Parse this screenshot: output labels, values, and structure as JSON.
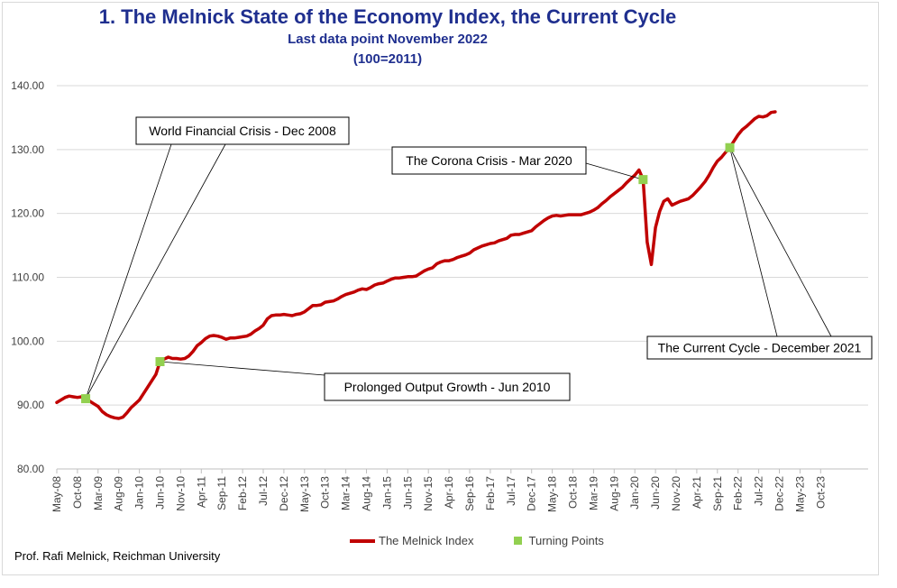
{
  "chart_data": {
    "type": "line",
    "title": "1.  The Melnick State of the Economy Index, the Current Cycle",
    "subtitle_1": "Last data point November 2022",
    "subtitle_2": "(100=2011)",
    "ylim": [
      80,
      140
    ],
    "y_ticks": [
      "80.00",
      "90.00",
      "100.00",
      "110.00",
      "120.00",
      "130.00",
      "140.00"
    ],
    "x_ticks": [
      "May-08",
      "Oct-08",
      "Mar-09",
      "Aug-09",
      "Jan-10",
      "Jun-10",
      "Nov-10",
      "Apr-11",
      "Sep-11",
      "Feb-12",
      "Jul-12",
      "Dec-12",
      "May-13",
      "Oct-13",
      "Mar-14",
      "Aug-14",
      "Jan-15",
      "Jun-15",
      "Nov-15",
      "Apr-16",
      "Sep-16",
      "Feb-17",
      "Jul-17",
      "Dec-17",
      "May-18",
      "Oct-18",
      "Mar-19",
      "Aug-19",
      "Jan-20",
      "Jun-20",
      "Nov-20",
      "Apr-21",
      "Sep-21",
      "Feb-22",
      "Jul-22",
      "Dec-22",
      "May-23",
      "Oct-23"
    ],
    "x_start": "2008-05",
    "grid": true,
    "series": [
      {
        "name": "The Melnick Index",
        "color": "#c00000",
        "points": [
          [
            "2008-05",
            90.4
          ],
          [
            "2008-06",
            90.8
          ],
          [
            "2008-07",
            91.2
          ],
          [
            "2008-08",
            91.4
          ],
          [
            "2008-09",
            91.3
          ],
          [
            "2008-10",
            91.2
          ],
          [
            "2008-11",
            91.3
          ],
          [
            "2008-12",
            91.0
          ],
          [
            "2009-01",
            90.6
          ],
          [
            "2009-02",
            90.2
          ],
          [
            "2009-03",
            89.8
          ],
          [
            "2009-04",
            89.0
          ],
          [
            "2009-05",
            88.5
          ],
          [
            "2009-06",
            88.2
          ],
          [
            "2009-07",
            88.0
          ],
          [
            "2009-08",
            87.9
          ],
          [
            "2009-09",
            88.1
          ],
          [
            "2009-10",
            88.8
          ],
          [
            "2009-11",
            89.6
          ],
          [
            "2009-12",
            90.2
          ],
          [
            "2010-01",
            90.8
          ],
          [
            "2010-02",
            91.8
          ],
          [
            "2010-03",
            92.8
          ],
          [
            "2010-04",
            93.8
          ],
          [
            "2010-05",
            94.8
          ],
          [
            "2010-06",
            96.8
          ],
          [
            "2010-07",
            97.2
          ],
          [
            "2010-08",
            97.5
          ],
          [
            "2010-09",
            97.3
          ],
          [
            "2010-10",
            97.3
          ],
          [
            "2010-11",
            97.2
          ],
          [
            "2010-12",
            97.3
          ],
          [
            "2011-01",
            97.7
          ],
          [
            "2011-02",
            98.4
          ],
          [
            "2011-03",
            99.3
          ],
          [
            "2011-04",
            99.8
          ],
          [
            "2011-05",
            100.4
          ],
          [
            "2011-06",
            100.8
          ],
          [
            "2011-07",
            100.9
          ],
          [
            "2011-08",
            100.8
          ],
          [
            "2011-09",
            100.6
          ],
          [
            "2011-10",
            100.3
          ],
          [
            "2011-11",
            100.5
          ],
          [
            "2011-12",
            100.5
          ],
          [
            "2012-01",
            100.6
          ],
          [
            "2012-02",
            100.7
          ],
          [
            "2012-03",
            100.8
          ],
          [
            "2012-04",
            101.1
          ],
          [
            "2012-05",
            101.6
          ],
          [
            "2012-06",
            102.0
          ],
          [
            "2012-07",
            102.5
          ],
          [
            "2012-08",
            103.5
          ],
          [
            "2012-09",
            104.0
          ],
          [
            "2012-10",
            104.1
          ],
          [
            "2012-11",
            104.1
          ],
          [
            "2012-12",
            104.2
          ],
          [
            "2013-01",
            104.1
          ],
          [
            "2013-02",
            104.0
          ],
          [
            "2013-03",
            104.2
          ],
          [
            "2013-04",
            104.3
          ],
          [
            "2013-05",
            104.6
          ],
          [
            "2013-06",
            105.1
          ],
          [
            "2013-07",
            105.6
          ],
          [
            "2013-08",
            105.6
          ],
          [
            "2013-09",
            105.7
          ],
          [
            "2013-10",
            106.1
          ],
          [
            "2013-11",
            106.2
          ],
          [
            "2013-12",
            106.3
          ],
          [
            "2014-01",
            106.6
          ],
          [
            "2014-02",
            107.0
          ],
          [
            "2014-03",
            107.3
          ],
          [
            "2014-04",
            107.5
          ],
          [
            "2014-05",
            107.7
          ],
          [
            "2014-06",
            108.0
          ],
          [
            "2014-07",
            108.2
          ],
          [
            "2014-08",
            108.1
          ],
          [
            "2014-09",
            108.4
          ],
          [
            "2014-10",
            108.8
          ],
          [
            "2014-11",
            109.0
          ],
          [
            "2014-12",
            109.1
          ],
          [
            "2015-01",
            109.4
          ],
          [
            "2015-02",
            109.7
          ],
          [
            "2015-03",
            109.9
          ],
          [
            "2015-04",
            109.9
          ],
          [
            "2015-05",
            110.0
          ],
          [
            "2015-06",
            110.1
          ],
          [
            "2015-07",
            110.1
          ],
          [
            "2015-08",
            110.2
          ],
          [
            "2015-09",
            110.6
          ],
          [
            "2015-10",
            111.0
          ],
          [
            "2015-11",
            111.3
          ],
          [
            "2015-12",
            111.5
          ],
          [
            "2016-01",
            112.1
          ],
          [
            "2016-02",
            112.4
          ],
          [
            "2016-03",
            112.6
          ],
          [
            "2016-04",
            112.6
          ],
          [
            "2016-05",
            112.8
          ],
          [
            "2016-06",
            113.1
          ],
          [
            "2016-07",
            113.3
          ],
          [
            "2016-08",
            113.5
          ],
          [
            "2016-09",
            113.8
          ],
          [
            "2016-10",
            114.3
          ],
          [
            "2016-11",
            114.6
          ],
          [
            "2016-12",
            114.9
          ],
          [
            "2017-01",
            115.1
          ],
          [
            "2017-02",
            115.3
          ],
          [
            "2017-03",
            115.4
          ],
          [
            "2017-04",
            115.7
          ],
          [
            "2017-05",
            115.9
          ],
          [
            "2017-06",
            116.1
          ],
          [
            "2017-07",
            116.6
          ],
          [
            "2017-08",
            116.7
          ],
          [
            "2017-09",
            116.7
          ],
          [
            "2017-10",
            116.9
          ],
          [
            "2017-11",
            117.1
          ],
          [
            "2017-12",
            117.3
          ],
          [
            "2018-01",
            117.9
          ],
          [
            "2018-02",
            118.4
          ],
          [
            "2018-03",
            118.9
          ],
          [
            "2018-04",
            119.3
          ],
          [
            "2018-05",
            119.6
          ],
          [
            "2018-06",
            119.7
          ],
          [
            "2018-07",
            119.6
          ],
          [
            "2018-08",
            119.7
          ],
          [
            "2018-09",
            119.8
          ],
          [
            "2018-10",
            119.8
          ],
          [
            "2018-11",
            119.8
          ],
          [
            "2018-12",
            119.8
          ],
          [
            "2019-01",
            120.0
          ],
          [
            "2019-02",
            120.2
          ],
          [
            "2019-03",
            120.5
          ],
          [
            "2019-04",
            120.9
          ],
          [
            "2019-05",
            121.5
          ],
          [
            "2019-06",
            122.0
          ],
          [
            "2019-07",
            122.6
          ],
          [
            "2019-08",
            123.1
          ],
          [
            "2019-09",
            123.6
          ],
          [
            "2019-10",
            124.1
          ],
          [
            "2019-11",
            124.8
          ],
          [
            "2019-12",
            125.4
          ],
          [
            "2020-01",
            126.0
          ],
          [
            "2020-02",
            126.8
          ],
          [
            "2020-03",
            125.3
          ],
          [
            "2020-04",
            115.5
          ],
          [
            "2020-05",
            112.0
          ],
          [
            "2020-06",
            117.8
          ],
          [
            "2020-07",
            120.3
          ],
          [
            "2020-08",
            121.9
          ],
          [
            "2020-09",
            122.3
          ],
          [
            "2020-10",
            121.3
          ],
          [
            "2020-11",
            121.6
          ],
          [
            "2020-12",
            121.9
          ],
          [
            "2021-01",
            122.1
          ],
          [
            "2021-02",
            122.3
          ],
          [
            "2021-03",
            122.8
          ],
          [
            "2021-04",
            123.5
          ],
          [
            "2021-05",
            124.2
          ],
          [
            "2021-06",
            125.0
          ],
          [
            "2021-07",
            126.0
          ],
          [
            "2021-08",
            127.2
          ],
          [
            "2021-09",
            128.2
          ],
          [
            "2021-10",
            128.8
          ],
          [
            "2021-11",
            129.6
          ],
          [
            "2021-12",
            130.3
          ],
          [
            "2022-01",
            131.3
          ],
          [
            "2022-02",
            132.3
          ],
          [
            "2022-03",
            133.1
          ],
          [
            "2022-04",
            133.6
          ],
          [
            "2022-05",
            134.2
          ],
          [
            "2022-06",
            134.8
          ],
          [
            "2022-07",
            135.2
          ],
          [
            "2022-08",
            135.1
          ],
          [
            "2022-09",
            135.3
          ],
          [
            "2022-10",
            135.8
          ],
          [
            "2022-11",
            135.9
          ]
        ]
      },
      {
        "name": "Turning Points",
        "color": "#92d050",
        "points": [
          [
            "2008-12",
            91.0
          ],
          [
            "2010-06",
            96.8
          ],
          [
            "2020-03",
            125.3
          ],
          [
            "2021-12",
            130.3
          ]
        ]
      }
    ],
    "annotations": [
      {
        "text": "World Financial Crisis - Dec 2008",
        "points_to": "2008-12"
      },
      {
        "text": "Prolonged Output Growth - Jun 2010",
        "points_to": "2010-06"
      },
      {
        "text": "The Corona Crisis - Mar 2020",
        "points_to": "2020-03"
      },
      {
        "text": "The Current Cycle - December 2021",
        "points_to": "2021-12"
      }
    ],
    "legend_position": "bottom-center"
  },
  "footer": "Prof. Rafi Melnick, Reichman University"
}
